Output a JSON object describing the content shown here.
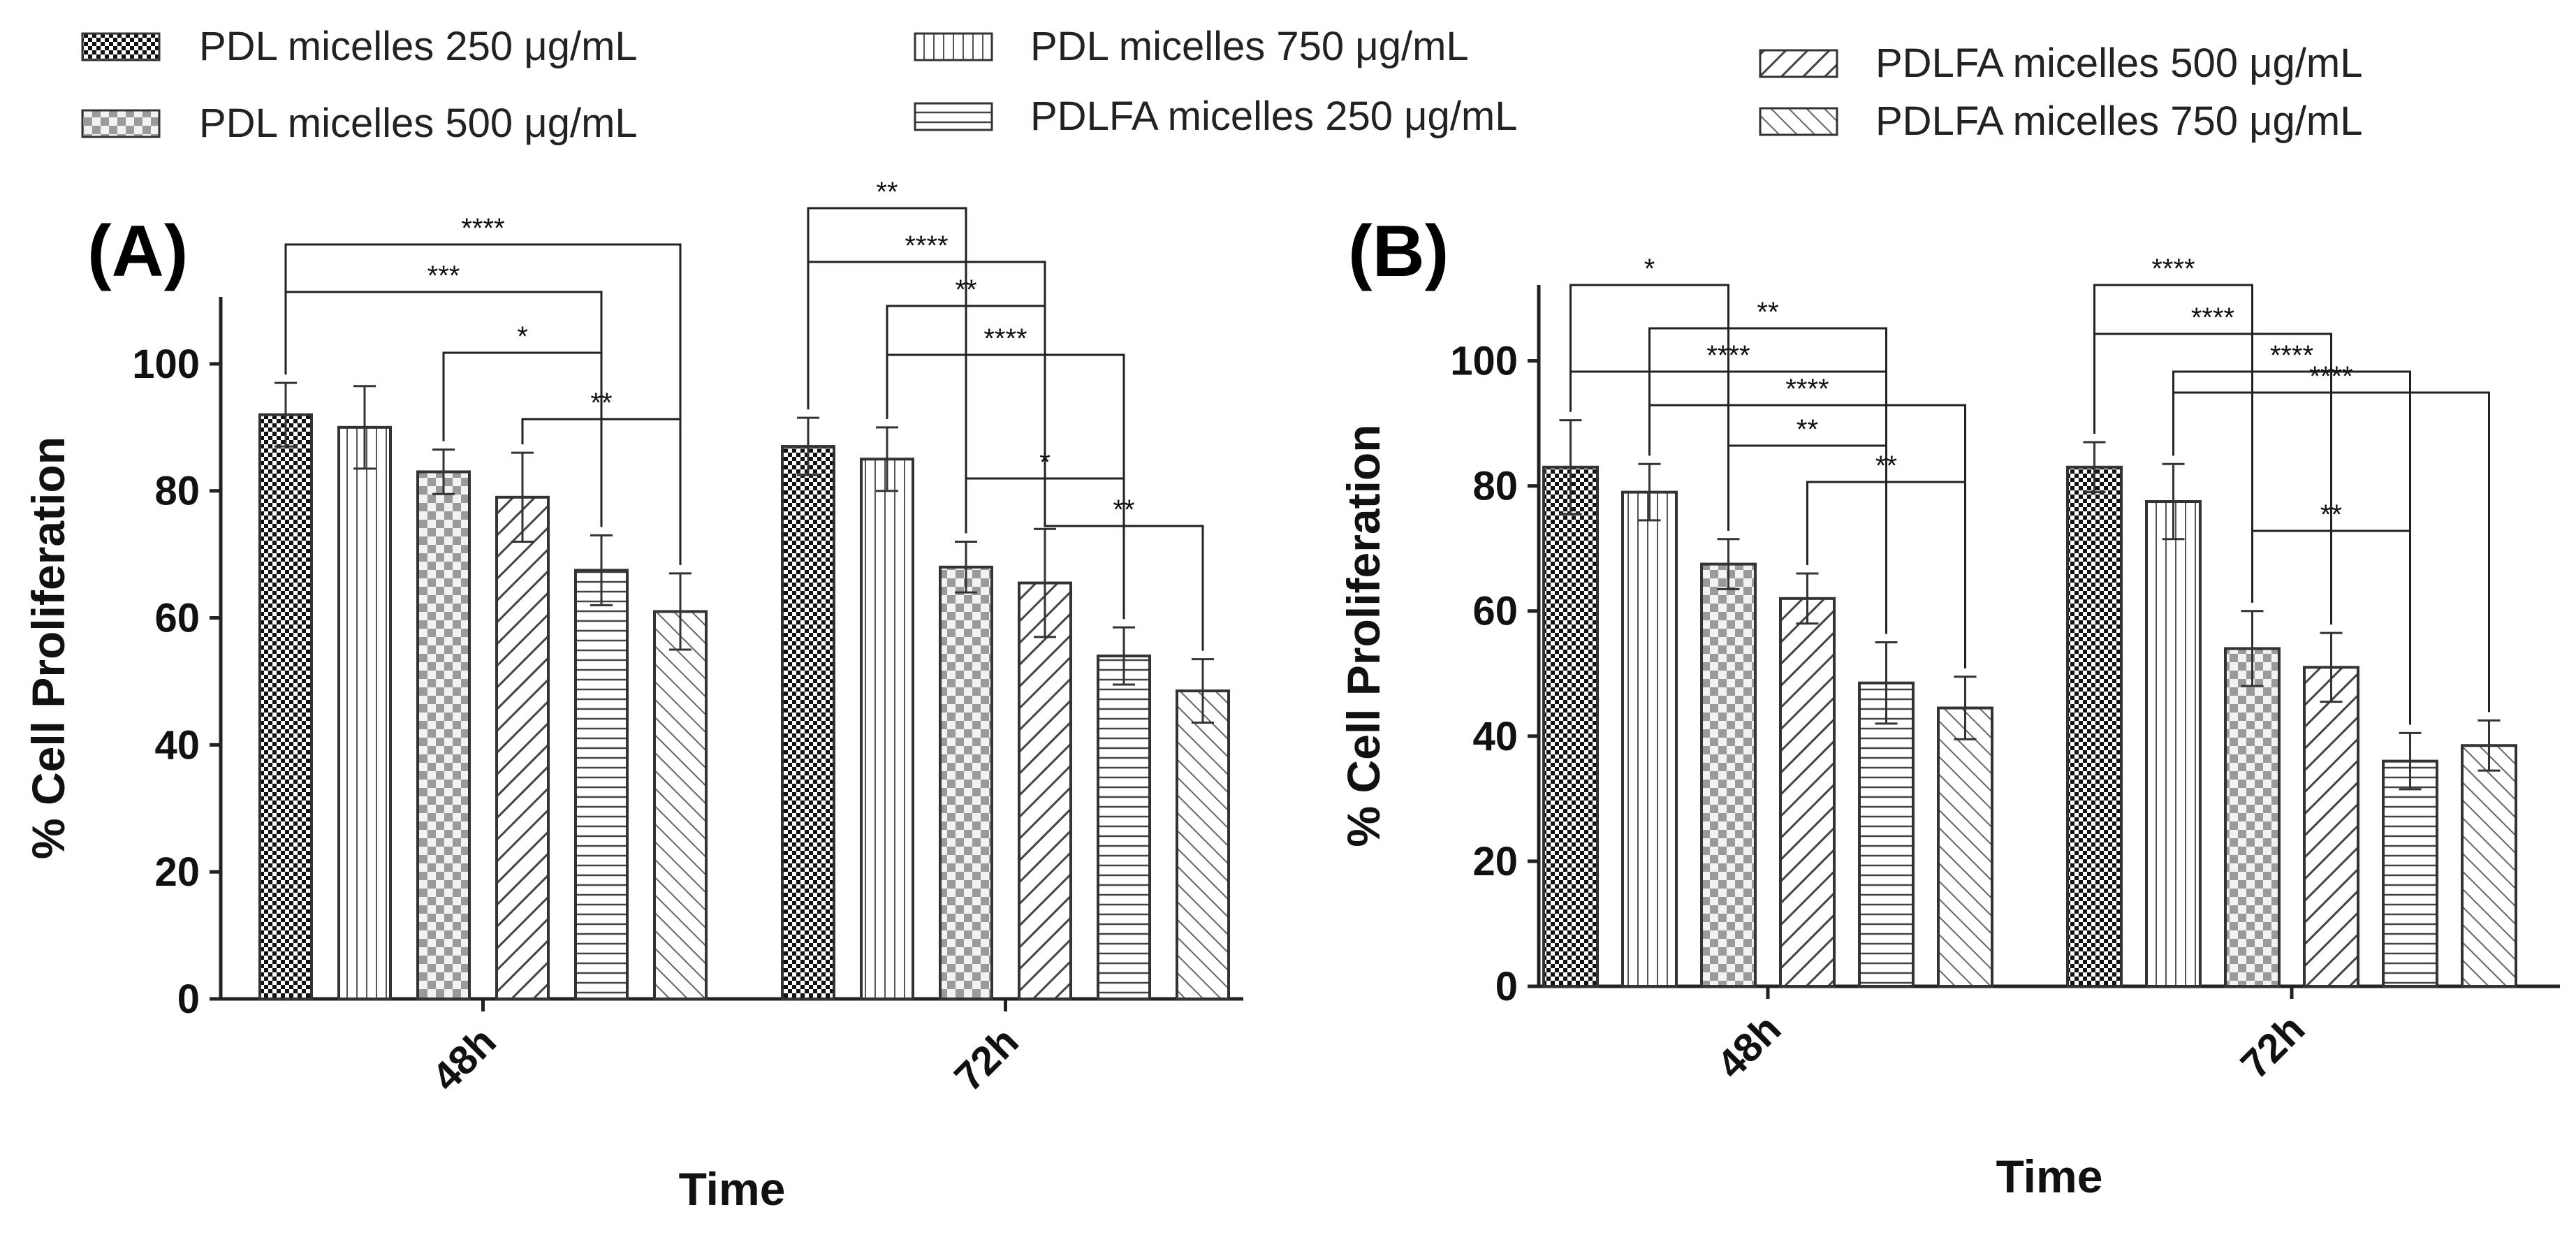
{
  "legend": [
    {
      "label": "PDL micelles 250 μg/mL",
      "pattern": "check-dark"
    },
    {
      "label": "PDL micelles 500 μg/mL",
      "pattern": "check-light"
    },
    {
      "label": "PDL micelles 750 μg/mL",
      "pattern": "vlines"
    },
    {
      "label": "PDLFA micelles 250 μg/mL",
      "pattern": "hlines"
    },
    {
      "label": "PDLFA micelles  500 μg/mL",
      "pattern": "diag"
    },
    {
      "label": "PDLFA micelles 750 μg/mL",
      "pattern": "anti-diag"
    }
  ],
  "chart_data": [
    {
      "type": "bar",
      "panel_label": "(A)",
      "xlabel": "Time",
      "ylabel": "% Cell Proliferation",
      "ylim": [
        0,
        110
      ],
      "yticks": [
        "0",
        "20",
        "40",
        "60",
        "80",
        "100"
      ],
      "categories": [
        "48h",
        "72h"
      ],
      "series": [
        {
          "name": "PDL micelles 250 μg/mL",
          "pattern": "check-dark",
          "values": [
            92,
            87
          ],
          "errors": [
            5,
            4.5
          ]
        },
        {
          "name": "PDL micelles 750 μg/mL",
          "pattern": "vlines",
          "values": [
            90,
            85
          ],
          "errors": [
            6.5,
            5
          ]
        },
        {
          "name": "PDL micelles 500 μg/mL",
          "pattern": "check-light",
          "values": [
            83,
            68
          ],
          "errors": [
            3.5,
            4
          ]
        },
        {
          "name": "PDLFA micelles  500 μg/mL",
          "pattern": "diag",
          "values": [
            79,
            65.5
          ],
          "errors": [
            7,
            8.5
          ]
        },
        {
          "name": "PDLFA micelles 250 μg/mL",
          "pattern": "hlines",
          "values": [
            67.5,
            54
          ],
          "errors": [
            5.5,
            4.5
          ]
        },
        {
          "name": "PDLFA micelles 750 μg/mL",
          "pattern": "anti-diag",
          "values": [
            61,
            48.5
          ],
          "errors": [
            6,
            5
          ]
        }
      ],
      "significance": [
        {
          "from": [
            0,
            0
          ],
          "to": [
            0,
            5
          ],
          "label": "****"
        },
        {
          "from": [
            0,
            0
          ],
          "to": [
            0,
            4
          ],
          "label": "***"
        },
        {
          "from": [
            0,
            2
          ],
          "to": [
            0,
            4
          ],
          "label": "*"
        },
        {
          "from": [
            0,
            3
          ],
          "to": [
            0,
            5
          ],
          "label": "**"
        },
        {
          "from": [
            1,
            0
          ],
          "to": [
            1,
            2
          ],
          "label": "**"
        },
        {
          "from": [
            1,
            0
          ],
          "to": [
            1,
            3
          ],
          "label": "****"
        },
        {
          "from": [
            1,
            1
          ],
          "to": [
            1,
            3
          ],
          "label": "**"
        },
        {
          "from": [
            1,
            1
          ],
          "to": [
            1,
            4
          ],
          "label": "****"
        },
        {
          "from": [
            1,
            2
          ],
          "to": [
            1,
            4
          ],
          "label": "*"
        },
        {
          "from": [
            1,
            3
          ],
          "to": [
            1,
            5
          ],
          "label": "**"
        }
      ]
    },
    {
      "type": "bar",
      "panel_label": "(B)",
      "xlabel": "Time",
      "ylabel": "% Cell Proliferation",
      "ylim": [
        0,
        110
      ],
      "yticks": [
        "0",
        "20",
        "40",
        "60",
        "80",
        "100"
      ],
      "categories": [
        "48h",
        "72h"
      ],
      "series": [
        {
          "name": "PDL micelles 250 μg/mL",
          "pattern": "check-dark",
          "values": [
            83,
            83
          ],
          "errors": [
            7.5,
            4
          ]
        },
        {
          "name": "PDL micelles 750 μg/mL",
          "pattern": "vlines",
          "values": [
            79,
            77.5
          ],
          "errors": [
            4.5,
            6
          ]
        },
        {
          "name": "PDL micelles 500 μg/mL",
          "pattern": "check-light",
          "values": [
            67.5,
            54
          ],
          "errors": [
            4,
            6
          ]
        },
        {
          "name": "PDLFA micelles  500 μg/mL",
          "pattern": "diag",
          "values": [
            62,
            51
          ],
          "errors": [
            4,
            5.5
          ]
        },
        {
          "name": "PDLFA micelles 250 μg/mL",
          "pattern": "hlines",
          "values": [
            48.5,
            36
          ],
          "errors": [
            6.5,
            4.5
          ]
        },
        {
          "name": "PDLFA micelles 750 μg/mL",
          "pattern": "anti-diag",
          "values": [
            44.5,
            38.5
          ],
          "errors": [
            5,
            4
          ]
        }
      ],
      "significance": [
        {
          "from": [
            0,
            0
          ],
          "to": [
            0,
            2
          ],
          "label": "*"
        },
        {
          "from": [
            0,
            1
          ],
          "to": [
            0,
            4
          ],
          "label": "**"
        },
        {
          "from": [
            0,
            0
          ],
          "to": [
            0,
            4
          ],
          "label": "****"
        },
        {
          "from": [
            0,
            1
          ],
          "to": [
            0,
            5
          ],
          "label": "****"
        },
        {
          "from": [
            0,
            2
          ],
          "to": [
            0,
            4
          ],
          "label": "**"
        },
        {
          "from": [
            0,
            3
          ],
          "to": [
            0,
            5
          ],
          "label": "**"
        },
        {
          "from": [
            1,
            0
          ],
          "to": [
            1,
            2
          ],
          "label": "****"
        },
        {
          "from": [
            1,
            0
          ],
          "to": [
            1,
            3
          ],
          "label": "****"
        },
        {
          "from": [
            1,
            1
          ],
          "to": [
            1,
            4
          ],
          "label": "****"
        },
        {
          "from": [
            1,
            1
          ],
          "to": [
            1,
            5
          ],
          "label": "****"
        },
        {
          "from": [
            1,
            2
          ],
          "to": [
            1,
            4
          ],
          "label": "**"
        }
      ]
    }
  ]
}
